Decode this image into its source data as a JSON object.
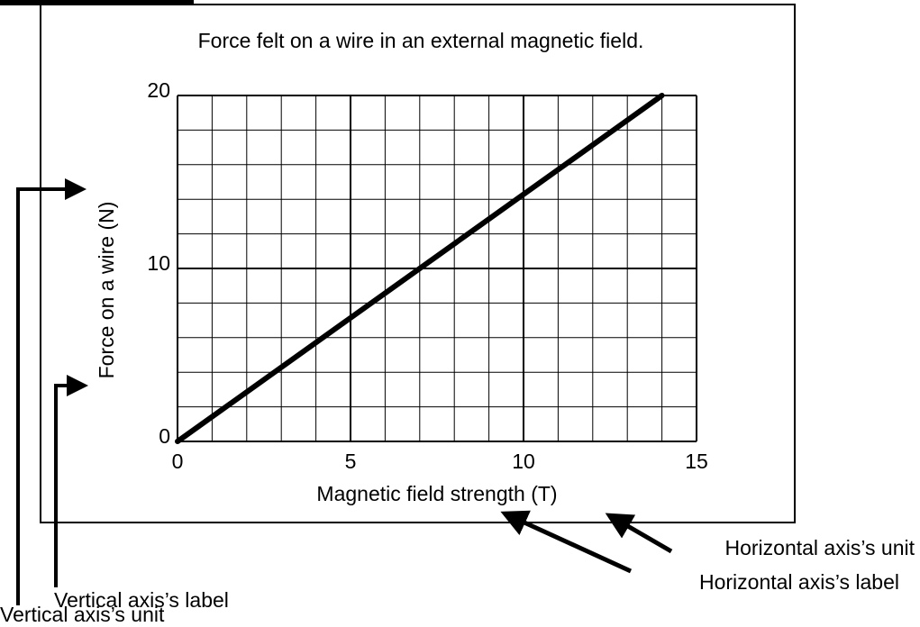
{
  "chart_data": {
    "type": "line",
    "title": "Force felt on a wire in an external magnetic field.",
    "x_label": "Magnetic field strength (T)",
    "y_label": "Force on a wire (N)",
    "x": [
      0,
      14
    ],
    "series": [
      {
        "color": "#000000",
        "values": [
          0,
          20
        ]
      }
    ],
    "xlim": [
      0,
      15
    ],
    "xticks": [
      0,
      5,
      10,
      15
    ],
    "ylim": [
      0,
      20
    ],
    "yticks": [
      0,
      10,
      20
    ],
    "grid": true,
    "annotations": [
      "Horizontal axis’s unit",
      "Horizontal axis’s label",
      "Vertical axis’s label",
      "Vertical axis’s unit"
    ]
  }
}
